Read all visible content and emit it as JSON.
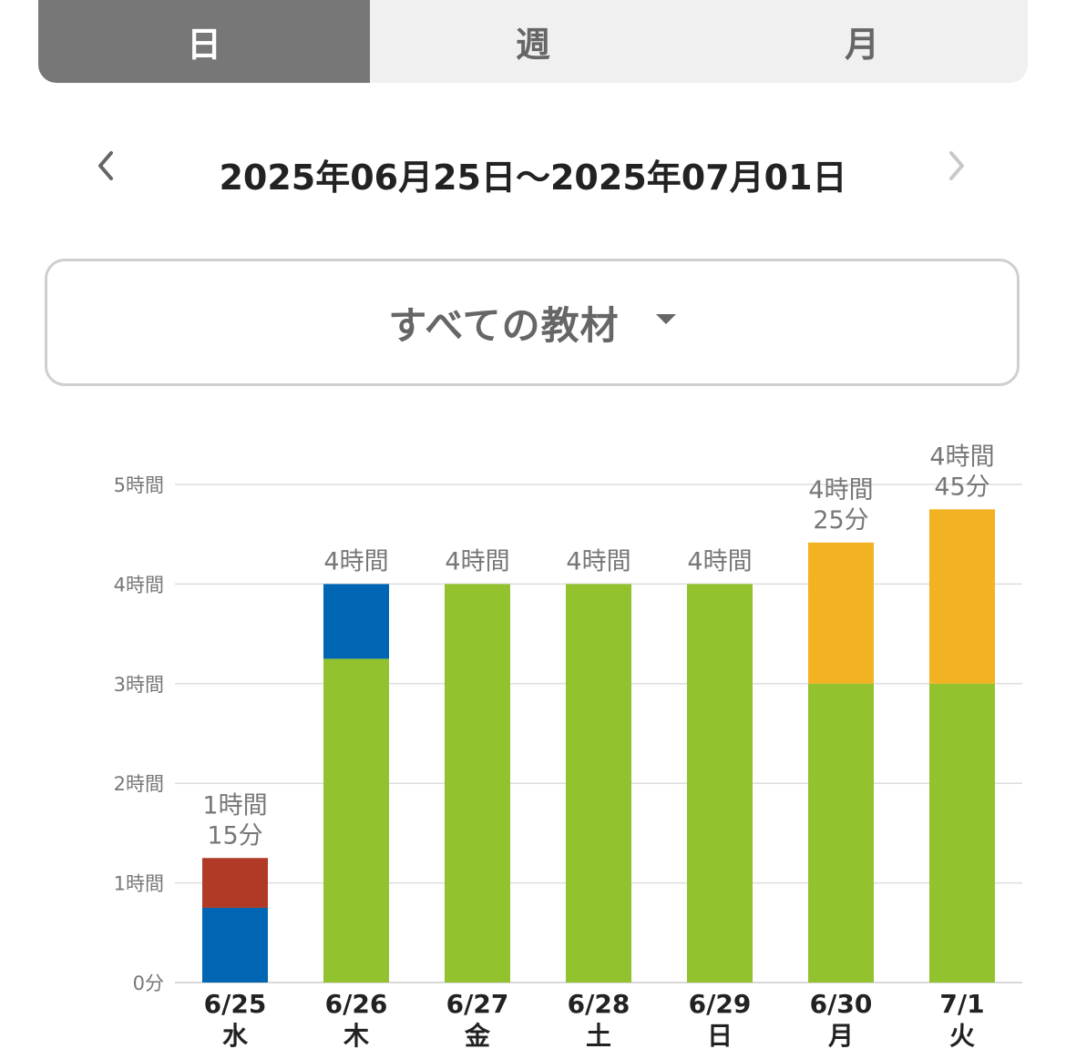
{
  "tabs": [
    {
      "label": "日",
      "active": true
    },
    {
      "label": "週",
      "active": false
    },
    {
      "label": "月",
      "active": false
    }
  ],
  "date_range": {
    "text": "2025年06月25日〜2025年07月01日",
    "prev_icon": "chevron-left-icon",
    "next_icon": "chevron-right-icon"
  },
  "material_selector": {
    "label": "すべての教材",
    "icon": "caret-down-icon"
  },
  "colors": {
    "green": "#92c22e",
    "blue": "#0066b3",
    "red": "#b03a26",
    "orange": "#f2b221",
    "grid": "#dddddd",
    "axis_text": "#777777"
  },
  "chart_data": {
    "type": "bar",
    "stacked": true,
    "unit": "minutes",
    "categories": [
      "6/25",
      "6/26",
      "6/27",
      "6/28",
      "6/29",
      "6/30",
      "7/1"
    ],
    "weekdays": [
      "水",
      "木",
      "金",
      "土",
      "日",
      "月",
      "火"
    ],
    "y_ticks": [
      "0分",
      "1時間",
      "2時間",
      "3時間",
      "4時間",
      "5時間"
    ],
    "ylim": [
      0,
      300
    ],
    "series": [
      {
        "color": "#92c22e",
        "values": [
          0,
          195,
          240,
          240,
          240,
          180,
          180
        ]
      },
      {
        "color": "#0066b3",
        "values": [
          45,
          45,
          0,
          0,
          0,
          0,
          0
        ]
      },
      {
        "color": "#b03a26",
        "values": [
          30,
          0,
          0,
          0,
          0,
          0,
          0
        ]
      },
      {
        "color": "#f2b221",
        "values": [
          0,
          0,
          0,
          0,
          0,
          85,
          105
        ]
      }
    ],
    "total_labels": [
      [
        "1時間",
        "15分"
      ],
      [
        "4時間"
      ],
      [
        "4時間"
      ],
      [
        "4時間"
      ],
      [
        "4時間"
      ],
      [
        "4時間",
        "25分"
      ],
      [
        "4時間",
        "45分"
      ]
    ],
    "grid": true
  }
}
